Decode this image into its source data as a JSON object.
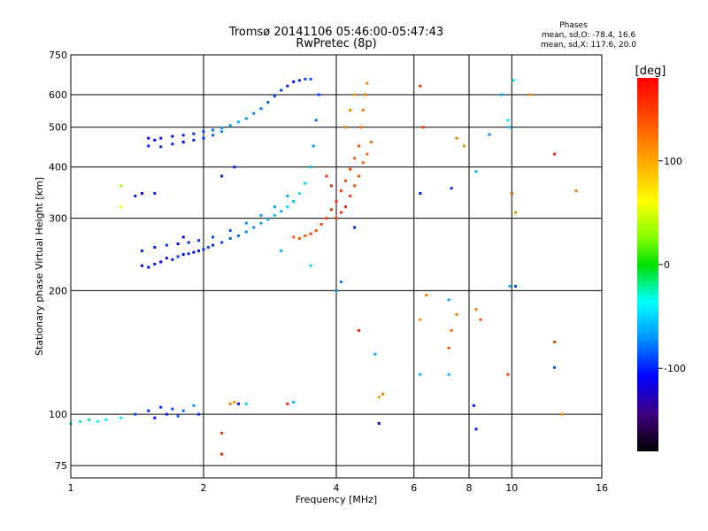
{
  "chart_data": {
    "type": "scatter",
    "title": "Tromsø 20141106 05:46:00-05:47:43",
    "subtitle": "RwPretec (8p)",
    "xlabel": "Frequency [MHz]",
    "ylabel": "Stationary phase Virtual Height [km]",
    "xscale": "log",
    "yscale": "log",
    "xlim": [
      1,
      16
    ],
    "ylim": [
      70,
      750
    ],
    "x_ticks": [
      1,
      2,
      4,
      6,
      8,
      10,
      16
    ],
    "x_tick_labels": [
      "1",
      "2",
      "4",
      "6",
      "8",
      "10",
      "16"
    ],
    "y_ticks": [
      75,
      100,
      200,
      300,
      400,
      500,
      600,
      750
    ],
    "y_tick_labels": [
      "75",
      "100",
      "200",
      "300",
      "400",
      "500",
      "600",
      "750"
    ],
    "grid": true,
    "phase_stats": {
      "heading": "Phases",
      "line_o": "mean, sd,O: -78.4, 16.6",
      "line_x": "mean, sd,X: 117.6, 20.0"
    },
    "colorbar": {
      "label": "[deg]",
      "range": [
        -180,
        180
      ],
      "ticks": [
        100,
        0,
        -100
      ],
      "tick_labels": [
        "100",
        "0",
        "-100"
      ]
    },
    "series": [
      {
        "trace": "F-lower-blue",
        "points": [
          [
            1.45,
            230,
            -110
          ],
          [
            1.5,
            228,
            -105
          ],
          [
            1.55,
            232,
            -100
          ],
          [
            1.6,
            235,
            -108
          ],
          [
            1.65,
            240,
            -112
          ],
          [
            1.7,
            238,
            -100
          ],
          [
            1.75,
            242,
            -95
          ],
          [
            1.8,
            245,
            -104
          ],
          [
            1.85,
            246,
            -98
          ],
          [
            1.9,
            248,
            -110
          ],
          [
            1.95,
            250,
            -100
          ],
          [
            2.0,
            252,
            -95
          ],
          [
            2.05,
            255,
            -90
          ],
          [
            2.1,
            258,
            -100
          ],
          [
            2.2,
            262,
            -92
          ],
          [
            2.3,
            268,
            -85
          ],
          [
            2.4,
            272,
            -80
          ],
          [
            2.5,
            278,
            -75
          ],
          [
            2.6,
            285,
            -70
          ],
          [
            2.7,
            292,
            -65
          ],
          [
            2.8,
            298,
            -60
          ],
          [
            2.9,
            305,
            -55
          ],
          [
            3.0,
            312,
            -60
          ],
          [
            3.1,
            320,
            -50
          ],
          [
            3.2,
            330,
            -55
          ],
          [
            3.3,
            345,
            -45
          ],
          [
            3.4,
            365,
            -50
          ],
          [
            3.5,
            400,
            -60
          ],
          [
            3.55,
            450,
            -70
          ],
          [
            3.6,
            520,
            -80
          ],
          [
            3.65,
            600,
            -90
          ],
          [
            1.45,
            250,
            -100
          ],
          [
            1.55,
            255,
            -105
          ],
          [
            1.65,
            258,
            -95
          ],
          [
            1.75,
            260,
            -110
          ],
          [
            1.85,
            262,
            -100
          ],
          [
            1.95,
            265,
            -95
          ],
          [
            2.1,
            270,
            -90
          ],
          [
            2.3,
            280,
            -85
          ],
          [
            2.5,
            292,
            -75
          ],
          [
            2.7,
            305,
            -70
          ],
          [
            2.9,
            320,
            -65
          ],
          [
            3.1,
            340,
            -60
          ]
        ]
      },
      {
        "trace": "F-upper-blue",
        "points": [
          [
            1.5,
            470,
            -110
          ],
          [
            1.55,
            465,
            -105
          ],
          [
            1.6,
            470,
            -100
          ],
          [
            1.7,
            475,
            -108
          ],
          [
            1.8,
            478,
            -100
          ],
          [
            1.9,
            482,
            -95
          ],
          [
            2.0,
            488,
            -90
          ],
          [
            2.1,
            492,
            -80
          ],
          [
            2.2,
            498,
            -70
          ],
          [
            2.3,
            505,
            -65
          ],
          [
            2.4,
            515,
            -60
          ],
          [
            2.5,
            525,
            -70
          ],
          [
            2.6,
            540,
            -75
          ],
          [
            2.7,
            555,
            -80
          ],
          [
            2.8,
            575,
            -85
          ],
          [
            2.9,
            595,
            -90
          ],
          [
            3.0,
            615,
            -95
          ],
          [
            3.1,
            630,
            -100
          ],
          [
            3.2,
            645,
            -105
          ],
          [
            3.3,
            650,
            -100
          ],
          [
            3.4,
            655,
            -95
          ],
          [
            3.5,
            655,
            -90
          ],
          [
            1.5,
            450,
            -100
          ],
          [
            1.6,
            448,
            -95
          ],
          [
            1.7,
            455,
            -100
          ],
          [
            1.8,
            460,
            -110
          ],
          [
            1.9,
            465,
            -100
          ],
          [
            2.0,
            470,
            -95
          ],
          [
            2.1,
            478,
            -85
          ],
          [
            2.2,
            488,
            -70
          ]
        ]
      },
      {
        "trace": "F-orange",
        "points": [
          [
            3.2,
            270,
            130
          ],
          [
            3.3,
            268,
            140
          ],
          [
            3.4,
            272,
            135
          ],
          [
            3.5,
            275,
            150
          ],
          [
            3.6,
            280,
            140
          ],
          [
            3.7,
            290,
            145
          ],
          [
            3.8,
            300,
            150
          ],
          [
            3.9,
            315,
            155
          ],
          [
            4.0,
            330,
            160
          ],
          [
            4.1,
            350,
            150
          ],
          [
            4.2,
            370,
            145
          ],
          [
            4.3,
            395,
            150
          ],
          [
            4.4,
            420,
            140
          ],
          [
            4.5,
            450,
            135
          ],
          [
            4.55,
            500,
            130
          ],
          [
            4.6,
            550,
            125
          ],
          [
            4.65,
            600,
            120
          ],
          [
            4.7,
            640,
            115
          ],
          [
            4.0,
            300,
            150
          ],
          [
            4.1,
            310,
            155
          ],
          [
            4.2,
            320,
            160
          ],
          [
            4.3,
            340,
            150
          ],
          [
            4.4,
            360,
            145
          ],
          [
            4.5,
            380,
            140
          ],
          [
            4.6,
            410,
            135
          ],
          [
            4.7,
            430,
            130
          ],
          [
            4.8,
            460,
            125
          ],
          [
            4.2,
            500,
            120
          ],
          [
            4.3,
            550,
            115
          ],
          [
            4.4,
            600,
            110
          ],
          [
            3.9,
            360,
            160
          ],
          [
            3.8,
            380,
            155
          ]
        ]
      },
      {
        "trace": "E-layer",
        "points": [
          [
            1.0,
            95,
            -30
          ],
          [
            1.05,
            96,
            -25
          ],
          [
            1.1,
            97,
            -20
          ],
          [
            1.15,
            96,
            -35
          ],
          [
            1.2,
            97,
            -30
          ],
          [
            1.3,
            98,
            -40
          ],
          [
            1.4,
            100,
            -90
          ],
          [
            1.5,
            102,
            -100
          ],
          [
            1.55,
            98,
            -110
          ],
          [
            1.6,
            104,
            -95
          ],
          [
            1.65,
            100,
            -100
          ],
          [
            1.7,
            103,
            -90
          ],
          [
            1.75,
            99,
            -85
          ],
          [
            1.8,
            102,
            -80
          ],
          [
            1.9,
            105,
            -70
          ],
          [
            1.95,
            100,
            -95
          ],
          [
            2.3,
            106,
            120
          ],
          [
            2.35,
            107,
            110
          ],
          [
            2.4,
            106,
            105
          ]
        ]
      },
      {
        "trace": "scattered",
        "points": [
          [
            6.2,
            630,
            160
          ],
          [
            6.3,
            500,
            150
          ],
          [
            7.5,
            470,
            120
          ],
          [
            7.8,
            450,
            115
          ],
          [
            8.3,
            390,
            -60
          ],
          [
            8.9,
            480,
            -75
          ],
          [
            9.8,
            520,
            -40
          ],
          [
            9.9,
            500,
            -55
          ],
          [
            10.1,
            650,
            -40
          ],
          [
            11.0,
            600,
            110
          ],
          [
            12.5,
            430,
            160
          ],
          [
            10.2,
            310,
            110
          ],
          [
            14.0,
            350,
            120
          ],
          [
            10.0,
            345,
            140
          ],
          [
            10.2,
            205,
            -90
          ],
          [
            9.9,
            205,
            -60
          ],
          [
            12.5,
            150,
            150
          ],
          [
            12.5,
            130,
            -90
          ],
          [
            13.0,
            100,
            110
          ],
          [
            9.8,
            125,
            150
          ],
          [
            8.2,
            105,
            -100
          ],
          [
            8.3,
            92,
            -100
          ],
          [
            7.2,
            125,
            -60
          ],
          [
            6.2,
            125,
            -60
          ],
          [
            7.2,
            145,
            140
          ],
          [
            7.3,
            160,
            130
          ],
          [
            7.5,
            175,
            120
          ],
          [
            7.2,
            190,
            -60
          ],
          [
            8.3,
            180,
            120
          ],
          [
            8.5,
            170,
            140
          ],
          [
            6.4,
            195,
            120
          ],
          [
            6.2,
            170,
            110
          ],
          [
            4.5,
            160,
            160
          ],
          [
            4.9,
            140,
            -60
          ],
          [
            4.0,
            200,
            -70
          ],
          [
            4.1,
            210,
            -80
          ],
          [
            4.4,
            285,
            -100
          ],
          [
            5.0,
            110,
            110
          ],
          [
            5.1,
            112,
            120
          ],
          [
            2.2,
            90,
            150
          ],
          [
            2.2,
            80,
            170
          ],
          [
            2.4,
            106,
            -100
          ],
          [
            2.5,
            106,
            -50
          ],
          [
            3.1,
            106,
            160
          ],
          [
            3.2,
            107,
            -60
          ],
          [
            1.3,
            320,
            60
          ],
          [
            1.3,
            360,
            30
          ],
          [
            1.4,
            340,
            -100
          ],
          [
            1.45,
            345,
            -110
          ],
          [
            1.55,
            345,
            -100
          ],
          [
            1.8,
            270,
            -110
          ],
          [
            2.2,
            380,
            -100
          ],
          [
            2.35,
            400,
            -100
          ],
          [
            3.0,
            250,
            -60
          ],
          [
            3.5,
            230,
            -50
          ],
          [
            6.2,
            345,
            -100
          ],
          [
            7.3,
            355,
            -100
          ],
          [
            5.0,
            95,
            -120
          ],
          [
            9.5,
            600,
            -60
          ]
        ]
      }
    ]
  }
}
